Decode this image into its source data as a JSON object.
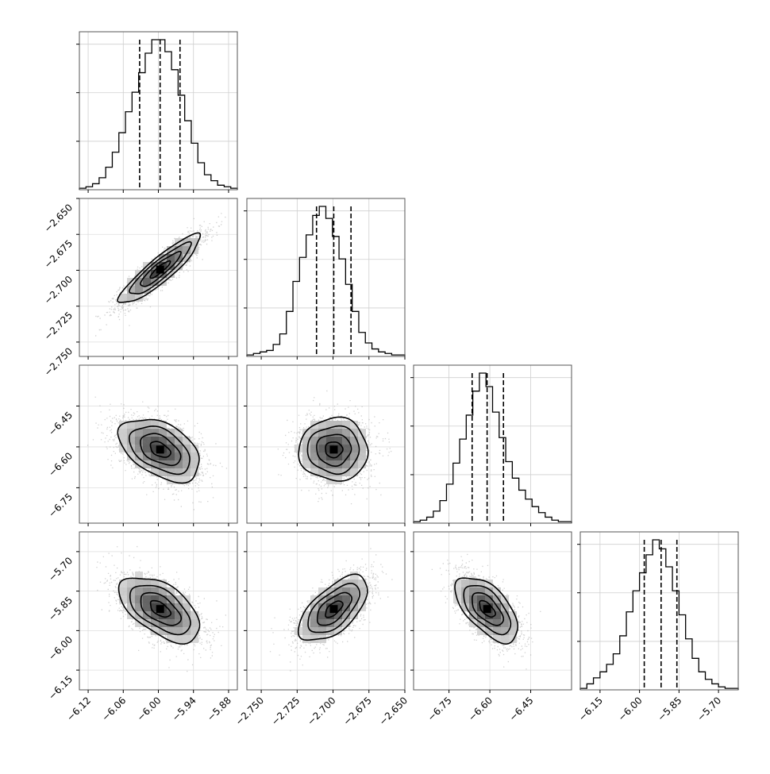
{
  "chart_data": {
    "type": "corner",
    "grid": true,
    "params": [
      {
        "range": [
          -6.135,
          -5.865
        ],
        "ticks": [
          -6.12,
          -6.06,
          -6.0,
          -5.94,
          -5.88
        ],
        "tick_labels": [
          "−6.12",
          "−6.06",
          "−6.00",
          "−5.94",
          "−5.88"
        ],
        "quantiles": [
          -6.032,
          -5.997,
          -5.963
        ],
        "hist": [
          1,
          2,
          4,
          8,
          15,
          25,
          38,
          52,
          65,
          78,
          91,
          100,
          100,
          92,
          80,
          63,
          46,
          31,
          18,
          10,
          6,
          3,
          2,
          1
        ]
      },
      {
        "range": [
          -2.76,
          -2.65
        ],
        "ticks": [
          -2.75,
          -2.725,
          -2.7,
          -2.675,
          -2.65
        ],
        "tick_labels": [
          "−2.750",
          "−2.725",
          "−2.700",
          "−2.675",
          "−2.650"
        ],
        "quantiles": [
          -2.7115,
          -2.6995,
          -2.6875
        ],
        "hist": [
          1,
          2,
          3,
          4,
          8,
          15,
          30,
          50,
          66,
          81,
          94,
          100,
          92,
          80,
          65,
          48,
          30,
          16,
          9,
          5,
          3,
          2,
          1,
          1
        ]
      },
      {
        "range": [
          -6.88,
          -6.3
        ],
        "ticks": [
          -6.75,
          -6.6,
          -6.45
        ],
        "tick_labels": [
          "−6.75",
          "−6.60",
          "−6.45"
        ],
        "quantiles": [
          -6.665,
          -6.61,
          -6.55
        ],
        "hist": [
          1,
          2,
          4,
          8,
          15,
          26,
          40,
          56,
          72,
          88,
          100,
          91,
          74,
          57,
          41,
          30,
          22,
          16,
          11,
          7,
          4,
          2,
          1,
          1
        ]
      },
      {
        "range": [
          -6.225,
          -5.625
        ],
        "ticks": [
          -6.15,
          -6.0,
          -5.85,
          -5.7
        ],
        "tick_labels": [
          "−6.15",
          "−6.00",
          "−5.85",
          "−5.70"
        ],
        "quantiles": [
          -5.982,
          -5.918,
          -5.858
        ],
        "hist": [
          1,
          4,
          8,
          12,
          17,
          24,
          36,
          52,
          66,
          78,
          90,
          100,
          94,
          82,
          66,
          50,
          34,
          21,
          12,
          7,
          4,
          2,
          1,
          1
        ]
      }
    ],
    "correlations": [
      [
        0,
        0.9,
        -0.45,
        -0.55
      ],
      [
        0,
        0,
        0,
        0.62
      ],
      [
        0,
        0,
        0,
        -0.6
      ],
      [
        0,
        0,
        0,
        0
      ]
    ],
    "contour_levels": [
      0.118,
      0.393,
      0.675,
      0.865
    ]
  }
}
